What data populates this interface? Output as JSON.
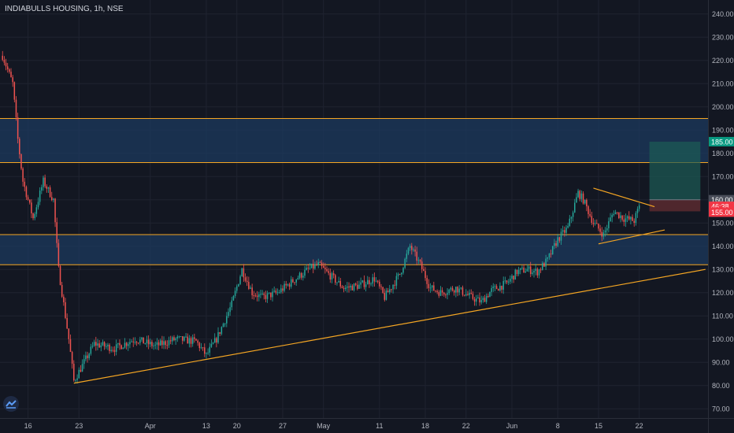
{
  "header": {
    "title": "INDIABULLS HOUSING, 1h, NSE"
  },
  "colors": {
    "background": "#131722",
    "grid": "#1f2330",
    "up": "#26a69a",
    "down": "#ef5350",
    "zone_fill": "#1c3a5e",
    "zone_line": "#f5a623",
    "trendline": "#f5a623",
    "target": "#1d5c55",
    "stop": "#5b2a2f",
    "axis_text": "#b2b5be"
  },
  "chart_data": {
    "type": "candlestick",
    "y_axis": {
      "min": 66,
      "max": 246,
      "ticks": [
        240,
        230,
        220,
        210,
        200,
        190,
        180,
        170,
        160,
        150,
        140,
        130,
        120,
        110,
        100,
        90,
        80,
        70
      ],
      "tick_labels": [
        "240.00",
        "230.00",
        "220.00",
        "210.00",
        "200.00",
        "190.00",
        "180.00",
        "170.00",
        "160.00",
        "150.00",
        "140.00",
        "130.00",
        "120.00",
        "110.00",
        "100.00",
        "90.00",
        "80.00",
        "70.00"
      ]
    },
    "x_axis": {
      "labels": [
        "16",
        "23",
        "Apr",
        "13",
        "20",
        "27",
        "May",
        "11",
        "18",
        "22",
        "Jun",
        "8",
        "15",
        "22"
      ],
      "label_bars": [
        5,
        15,
        29,
        40,
        46,
        55,
        63,
        74,
        83,
        91,
        100,
        109,
        117,
        125
      ]
    },
    "bars_visible": 139,
    "price_path": [
      [
        0,
        222
      ],
      [
        2,
        210
      ],
      [
        3,
        186
      ],
      [
        4,
        168
      ],
      [
        6,
        152
      ],
      [
        8,
        168
      ],
      [
        10,
        160
      ],
      [
        11,
        130
      ],
      [
        13,
        100
      ],
      [
        14,
        82
      ],
      [
        18,
        98
      ],
      [
        22,
        96
      ],
      [
        26,
        100
      ],
      [
        30,
        97
      ],
      [
        34,
        100
      ],
      [
        38,
        99
      ],
      [
        40,
        93
      ],
      [
        42,
        100
      ],
      [
        45,
        115
      ],
      [
        47,
        130
      ],
      [
        49,
        120
      ],
      [
        51,
        118
      ],
      [
        54,
        120
      ],
      [
        57,
        125
      ],
      [
        60,
        130
      ],
      [
        62,
        132
      ],
      [
        64,
        128
      ],
      [
        67,
        122
      ],
      [
        70,
        123
      ],
      [
        73,
        126
      ],
      [
        75,
        118
      ],
      [
        78,
        128
      ],
      [
        80,
        140
      ],
      [
        82,
        132
      ],
      [
        84,
        122
      ],
      [
        86,
        120
      ],
      [
        89,
        122
      ],
      [
        92,
        118
      ],
      [
        94,
        116
      ],
      [
        96,
        121
      ],
      [
        99,
        124
      ],
      [
        101,
        129
      ],
      [
        103,
        130
      ],
      [
        105,
        129
      ],
      [
        107,
        134
      ],
      [
        109,
        143
      ],
      [
        111,
        148
      ],
      [
        113,
        163
      ],
      [
        114,
        160
      ],
      [
        116,
        150
      ],
      [
        118,
        145
      ],
      [
        120,
        155
      ],
      [
        122,
        152
      ],
      [
        124,
        151
      ],
      [
        125,
        157
      ]
    ],
    "price_labels": {
      "target": "185.00",
      "entry": "160.00",
      "countdown": "46:38",
      "stop": "155.00"
    },
    "zones": [
      {
        "low": 176,
        "high": 195
      },
      {
        "low": 132,
        "high": 145
      }
    ],
    "trendlines": [
      {
        "from": [
          14,
          81
        ],
        "to": [
          138,
          130
        ]
      },
      {
        "from": [
          117,
          141
        ],
        "to": [
          130,
          147
        ]
      },
      {
        "from": [
          116,
          165
        ],
        "to": [
          128,
          157
        ]
      }
    ],
    "position": {
      "start_bar": 127,
      "end_bar": 137,
      "target": 185,
      "entry": 160,
      "stop": 155
    }
  }
}
